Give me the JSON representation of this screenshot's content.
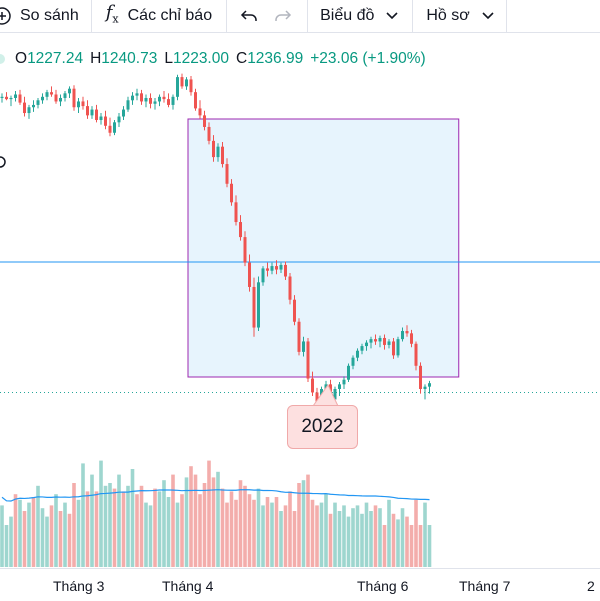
{
  "toolbar": {
    "compare_label": "So sánh",
    "indicators_label": "Các chỉ báo",
    "chart_label": "Biểu đồ",
    "profile_label": "Hồ sơ"
  },
  "ohlc": {
    "o_label": "O",
    "o_value": "1227.24",
    "h_label": "H",
    "h_value": "1240.73",
    "l_label": "L",
    "l_value": "1223.00",
    "c_label": "C",
    "c_value": "1236.99",
    "change": "+23.06 (+1.90%)"
  },
  "selection_year": "2022",
  "x_axis": {
    "labels": [
      "Tháng 3",
      "Tháng 4",
      "Tháng 6",
      "Tháng 7",
      "2"
    ]
  },
  "colors": {
    "up": "#26a69a",
    "down": "#ef5350",
    "up_volume": "#9ed6cf",
    "down_volume": "#f3adab",
    "selection_border": "#9c27b0",
    "selection_fill": "#e3f2fd",
    "price_line": "#2196f3",
    "volume_ma": "#2196f3",
    "ohlc_value": "#089981"
  },
  "chart_data": {
    "type": "candlestick",
    "candles": [
      [
        1520,
        1528,
        1512,
        1522
      ],
      [
        1522,
        1530,
        1516,
        1518
      ],
      [
        1518,
        1524,
        1506,
        1520
      ],
      [
        1520,
        1532,
        1514,
        1526
      ],
      [
        1526,
        1534,
        1508,
        1512
      ],
      [
        1512,
        1522,
        1488,
        1494
      ],
      [
        1494,
        1508,
        1484,
        1504
      ],
      [
        1504,
        1516,
        1496,
        1508
      ],
      [
        1508,
        1520,
        1502,
        1516
      ],
      [
        1516,
        1528,
        1510,
        1522
      ],
      [
        1522,
        1534,
        1516,
        1530
      ],
      [
        1530,
        1540,
        1522,
        1526
      ],
      [
        1526,
        1534,
        1510,
        1514
      ],
      [
        1514,
        1526,
        1506,
        1520
      ],
      [
        1520,
        1532,
        1514,
        1528
      ],
      [
        1528,
        1540,
        1520,
        1536
      ],
      [
        1536,
        1542,
        1498,
        1504
      ],
      [
        1504,
        1520,
        1494,
        1514
      ],
      [
        1514,
        1522,
        1500,
        1506
      ],
      [
        1506,
        1516,
        1484,
        1490
      ],
      [
        1490,
        1506,
        1484,
        1500
      ],
      [
        1500,
        1508,
        1478,
        1482
      ],
      [
        1482,
        1494,
        1474,
        1488
      ],
      [
        1488,
        1498,
        1466,
        1472
      ],
      [
        1472,
        1486,
        1454,
        1460
      ],
      [
        1460,
        1482,
        1456,
        1478
      ],
      [
        1478,
        1494,
        1470,
        1488
      ],
      [
        1488,
        1506,
        1482,
        1500
      ],
      [
        1500,
        1522,
        1496,
        1516
      ],
      [
        1516,
        1530,
        1508,
        1524
      ],
      [
        1524,
        1536,
        1516,
        1528
      ],
      [
        1528,
        1534,
        1508,
        1514
      ],
      [
        1514,
        1526,
        1504,
        1520
      ],
      [
        1520,
        1528,
        1502,
        1510
      ],
      [
        1510,
        1520,
        1500,
        1514
      ],
      [
        1514,
        1526,
        1506,
        1522
      ],
      [
        1522,
        1532,
        1512,
        1518
      ],
      [
        1518,
        1528,
        1504,
        1508
      ],
      [
        1508,
        1526,
        1500,
        1522
      ],
      [
        1522,
        1560,
        1516,
        1556
      ],
      [
        1556,
        1562,
        1536,
        1540
      ],
      [
        1540,
        1556,
        1534,
        1552
      ],
      [
        1552,
        1558,
        1524,
        1530
      ],
      [
        1530,
        1536,
        1498,
        1502
      ],
      [
        1502,
        1516,
        1484,
        1490
      ],
      [
        1490,
        1498,
        1464,
        1470
      ],
      [
        1470,
        1478,
        1440,
        1446
      ],
      [
        1446,
        1456,
        1410,
        1418
      ],
      [
        1418,
        1442,
        1410,
        1436
      ],
      [
        1436,
        1444,
        1400,
        1406
      ],
      [
        1406,
        1416,
        1366,
        1372
      ],
      [
        1372,
        1380,
        1334,
        1340
      ],
      [
        1340,
        1352,
        1300,
        1306
      ],
      [
        1306,
        1318,
        1274,
        1280
      ],
      [
        1280,
        1290,
        1230,
        1236
      ],
      [
        1236,
        1250,
        1186,
        1194
      ],
      [
        1194,
        1210,
        1108,
        1124
      ],
      [
        1124,
        1212,
        1118,
        1202
      ],
      [
        1202,
        1230,
        1196,
        1226
      ],
      [
        1226,
        1236,
        1212,
        1222
      ],
      [
        1222,
        1236,
        1216,
        1230
      ],
      [
        1230,
        1240,
        1216,
        1224
      ],
      [
        1224,
        1236,
        1218,
        1232
      ],
      [
        1232,
        1238,
        1206,
        1212
      ],
      [
        1212,
        1218,
        1164,
        1172
      ],
      [
        1172,
        1180,
        1128,
        1134
      ],
      [
        1134,
        1140,
        1076,
        1082
      ],
      [
        1082,
        1108,
        1074,
        1100
      ],
      [
        1100,
        1106,
        1030,
        1036
      ],
      [
        1036,
        1048,
        1006,
        1012
      ],
      [
        1012,
        1020,
        966,
        974
      ],
      [
        974,
        1022,
        970,
        1018
      ],
      [
        1018,
        1032,
        1010,
        1026
      ],
      [
        1026,
        1034,
        994,
        1000
      ],
      [
        1000,
        1022,
        994,
        1018
      ],
      [
        1018,
        1030,
        1006,
        1026
      ],
      [
        1026,
        1040,
        1018,
        1034
      ],
      [
        1034,
        1062,
        1030,
        1058
      ],
      [
        1058,
        1076,
        1052,
        1072
      ],
      [
        1072,
        1088,
        1066,
        1084
      ],
      [
        1084,
        1096,
        1078,
        1092
      ],
      [
        1092,
        1102,
        1084,
        1098
      ],
      [
        1098,
        1108,
        1088,
        1104
      ],
      [
        1104,
        1112,
        1094,
        1100
      ],
      [
        1100,
        1110,
        1090,
        1106
      ],
      [
        1106,
        1112,
        1086,
        1094
      ],
      [
        1094,
        1104,
        1088,
        1100
      ],
      [
        1100,
        1106,
        1070,
        1076
      ],
      [
        1076,
        1108,
        1072,
        1104
      ],
      [
        1104,
        1124,
        1100,
        1118
      ],
      [
        1118,
        1128,
        1108,
        1114
      ],
      [
        1114,
        1120,
        1090,
        1096
      ],
      [
        1096,
        1100,
        1050,
        1058
      ],
      [
        1058,
        1064,
        1010,
        1018
      ],
      [
        1018,
        1026,
        1000,
        1022
      ],
      [
        1022,
        1032,
        1010,
        1028
      ]
    ],
    "volumes": [
      44,
      30,
      36,
      52,
      48,
      40,
      46,
      50,
      58,
      42,
      36,
      44,
      52,
      40,
      46,
      38,
      60,
      48,
      74,
      54,
      66,
      54,
      76,
      58,
      60,
      56,
      66,
      54,
      58,
      70,
      52,
      58,
      46,
      44,
      56,
      54,
      62,
      50,
      66,
      46,
      52,
      64,
      72,
      66,
      52,
      60,
      76,
      64,
      68,
      56,
      46,
      54,
      48,
      62,
      58,
      52,
      48,
      56,
      44,
      50,
      46,
      50,
      40,
      44,
      54,
      40,
      60,
      62,
      66,
      48,
      44,
      46,
      52,
      38,
      46,
      40,
      44,
      36,
      42,
      44,
      38,
      46,
      40,
      44,
      42,
      30,
      48,
      38,
      34,
      42,
      36,
      30,
      48,
      30,
      46,
      30
    ],
    "volume_dir": [
      1,
      1,
      1,
      0,
      1,
      0,
      1,
      0,
      1,
      1,
      1,
      0,
      1,
      0,
      1,
      0,
      0,
      1,
      1,
      0,
      1,
      0,
      1,
      1,
      1,
      0,
      1,
      0,
      1,
      1,
      0,
      0,
      1,
      1,
      0,
      1,
      1,
      1,
      0,
      1,
      0,
      1,
      0,
      0,
      0,
      0,
      0,
      0,
      1,
      0,
      0,
      0,
      0,
      0,
      0,
      0,
      0,
      1,
      1,
      0,
      1,
      0,
      1,
      0,
      0,
      0,
      0,
      1,
      0,
      0,
      0,
      1,
      1,
      0,
      1,
      1,
      1,
      1,
      1,
      1,
      1,
      1,
      1,
      0,
      1,
      0,
      1,
      0,
      1,
      1,
      0,
      0,
      0,
      0,
      1,
      1
    ],
    "last_price_level": 1236.99
  }
}
